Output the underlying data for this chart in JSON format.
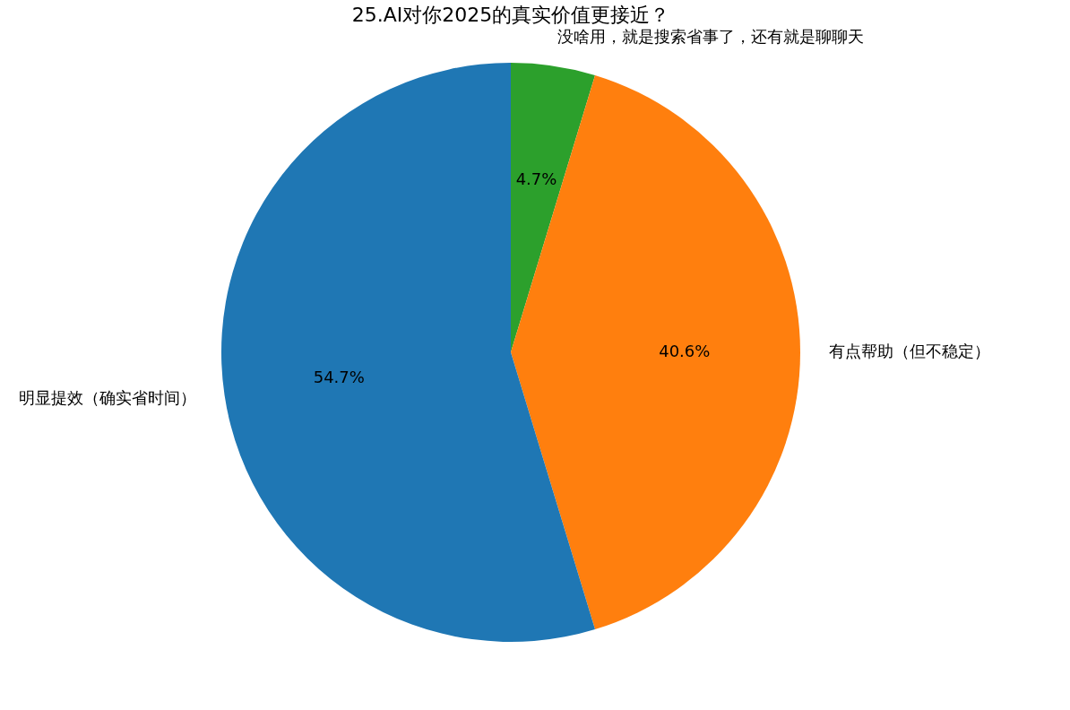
{
  "chart_data": {
    "type": "pie",
    "title": "25.AI对你2025的真实价值更接近？",
    "categories": [
      "明显提效（确实省时间）",
      "有点帮助（但不稳定）",
      "没啥用，就是搜索省事了，还有就是聊聊天"
    ],
    "values": [
      54.7,
      40.6,
      4.7
    ],
    "colors": [
      "#1f77b4",
      "#ff7f0e",
      "#2ca02c"
    ],
    "value_labels": [
      "54.7%",
      "40.6%",
      "4.7%"
    ],
    "legend": false
  }
}
